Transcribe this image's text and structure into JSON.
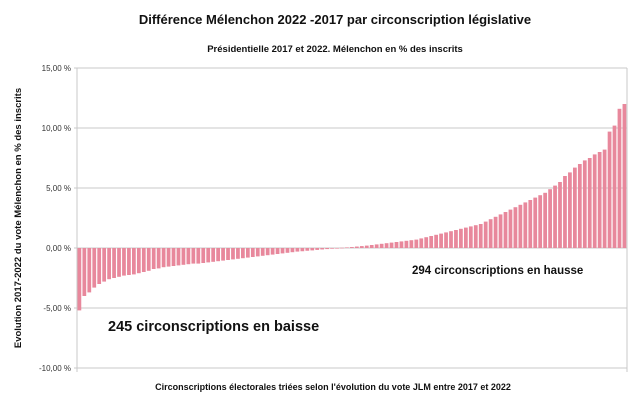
{
  "chart_data": {
    "type": "bar",
    "title": "Différence Mélenchon 2022 -2017 par circonscription législative",
    "subtitle": "Présidentielle 2017 et 2022. Mélenchon en % des inscrits",
    "xlabel": "Circonscriptions électorales triées selon l'évolution du vote JLM entre 2017 et 2022",
    "ylabel": "Evolution 2017-2022 du vote Mélenchon en % des inscrits",
    "ylim": [
      -10,
      15
    ],
    "yticks": [
      15,
      10,
      5,
      0,
      -5,
      -10
    ],
    "ytick_labels": [
      "15,00 %",
      "10,00 %",
      "5,00 %",
      "0,00 %",
      "-5,00 %",
      "-10,00 %"
    ],
    "grid": true,
    "bar_color": "#e8889c",
    "annotations": [
      "294 circonscriptions en hausse",
      "245 circonscriptions en baisse"
    ],
    "values": [
      -5.2,
      -4.0,
      -3.7,
      -3.3,
      -3.0,
      -2.8,
      -2.6,
      -2.5,
      -2.4,
      -2.3,
      -2.25,
      -2.2,
      -2.1,
      -2.0,
      -1.9,
      -1.75,
      -1.7,
      -1.6,
      -1.55,
      -1.5,
      -1.45,
      -1.4,
      -1.35,
      -1.3,
      -1.3,
      -1.25,
      -1.2,
      -1.15,
      -1.1,
      -1.05,
      -1.0,
      -0.95,
      -0.9,
      -0.85,
      -0.8,
      -0.75,
      -0.7,
      -0.65,
      -0.6,
      -0.55,
      -0.5,
      -0.45,
      -0.4,
      -0.35,
      -0.3,
      -0.27,
      -0.23,
      -0.2,
      -0.16,
      -0.12,
      -0.09,
      -0.06,
      -0.03,
      0.02,
      0.05,
      0.08,
      0.12,
      0.16,
      0.2,
      0.25,
      0.3,
      0.35,
      0.4,
      0.45,
      0.5,
      0.55,
      0.6,
      0.65,
      0.7,
      0.8,
      0.9,
      1.0,
      1.1,
      1.2,
      1.3,
      1.4,
      1.5,
      1.6,
      1.7,
      1.8,
      1.9,
      2.0,
      2.2,
      2.4,
      2.6,
      2.8,
      3.0,
      3.2,
      3.4,
      3.6,
      3.8,
      4.0,
      4.2,
      4.4,
      4.6,
      4.9,
      5.2,
      5.5,
      6.0,
      6.3,
      6.7,
      7.0,
      7.3,
      7.5,
      7.8,
      8.0,
      8.2,
      9.7,
      10.2,
      11.6,
      12.0
    ]
  }
}
